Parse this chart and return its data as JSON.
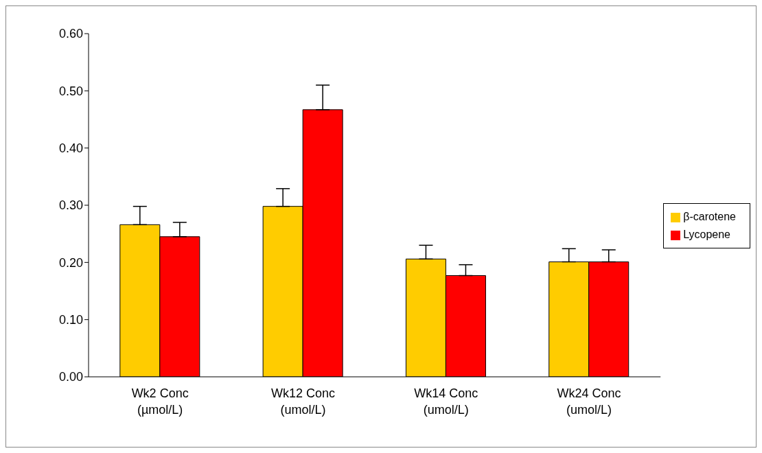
{
  "chart_data": {
    "type": "bar",
    "categories": [
      "Wk2 Conc\n(µmol/L)",
      "Wk12 Conc\n(umol/L)",
      "Wk14 Conc\n(umol/L)",
      "Wk24 Conc\n(umol/L)"
    ],
    "series": [
      {
        "name": "β-carotene",
        "color": "#ffcc00",
        "values": [
          0.266,
          0.298,
          0.206,
          0.201
        ],
        "errors": [
          [
            0.266,
            0.298
          ],
          [
            0.298,
            0.329
          ],
          [
            0.206,
            0.23
          ],
          [
            0.201,
            0.224
          ]
        ]
      },
      {
        "name": "Lycopene",
        "color": "#ff0000",
        "values": [
          0.245,
          0.467,
          0.177,
          0.201
        ],
        "errors": [
          [
            0.245,
            0.27
          ],
          [
            0.467,
            0.51
          ],
          [
            0.177,
            0.196
          ],
          [
            0.201,
            0.222
          ]
        ]
      }
    ],
    "ylim": [
      0,
      0.6
    ],
    "yticks": [
      {
        "value": 0,
        "label": "0.00"
      },
      {
        "value": 0.1,
        "label": "0.10"
      },
      {
        "value": 0.2,
        "label": "0.20"
      },
      {
        "value": 0.3,
        "label": "0.30"
      },
      {
        "value": 0.4,
        "label": "0.40"
      },
      {
        "value": 0.5,
        "label": "0.50"
      },
      {
        "value": 0.6,
        "label": "0.60"
      }
    ],
    "grid": false,
    "legend": "right"
  }
}
